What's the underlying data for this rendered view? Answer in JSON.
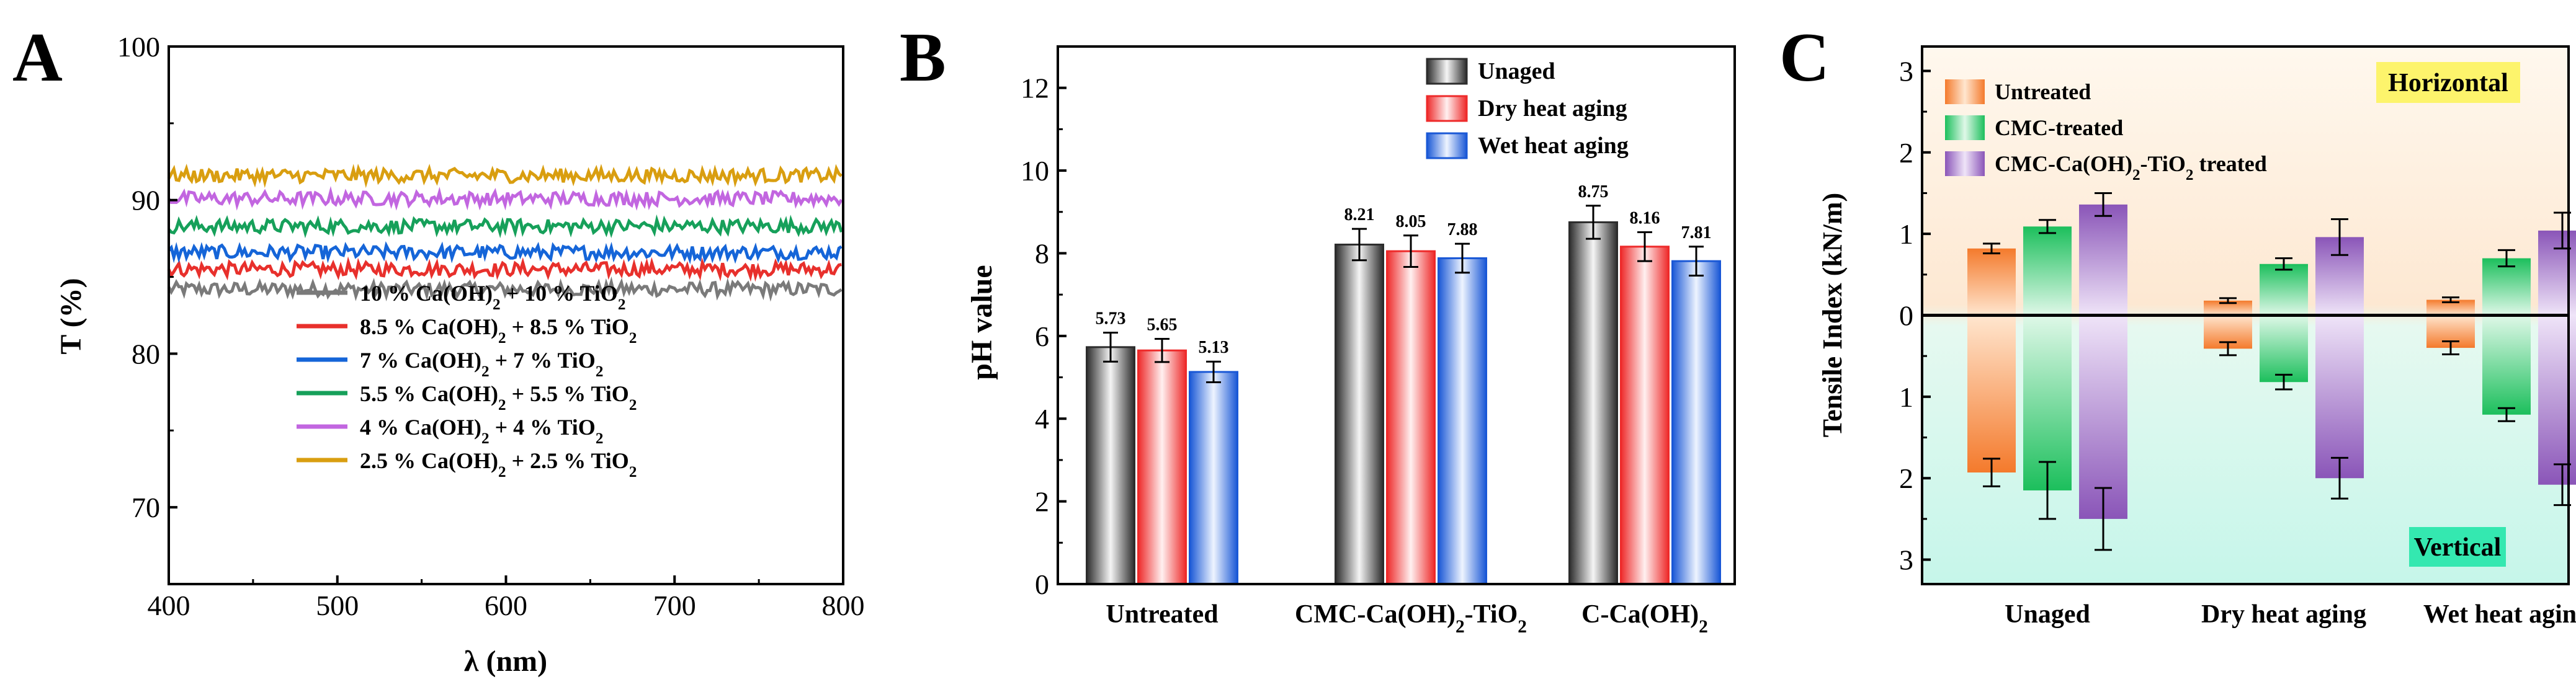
{
  "panels": {
    "A": {
      "letter": "A",
      "chart_data": {
        "type": "line",
        "title": "",
        "xlabel": "λ (nm)",
        "ylabel": "T (%)",
        "xlim": [
          400,
          800
        ],
        "ylim": [
          65,
          100
        ],
        "xticks": [
          400,
          500,
          600,
          700,
          800
        ],
        "yticks": [
          70,
          80,
          90,
          100
        ],
        "legend_position": "bottom-right",
        "series": [
          {
            "name": "10 % Ca(OH)2 + 10 % TiO2",
            "legend_parts": [
              "10 % Ca(OH)",
              "2",
              " + 10 % TiO",
              "2"
            ],
            "mean": 84.2,
            "color": "#7a7a7a"
          },
          {
            "name": "8.5 % Ca(OH)2 + 8.5 % TiO2",
            "legend_parts": [
              "8.5 % Ca(OH)",
              "2",
              " + 8.5 % TiO",
              "2"
            ],
            "mean": 85.5,
            "color": "#e8302c"
          },
          {
            "name": "7 % Ca(OH)2 + 7 % TiO2",
            "legend_parts": [
              "7 % Ca(OH)",
              "2",
              " + 7 % TiO",
              "2"
            ],
            "mean": 86.6,
            "color": "#1565d8"
          },
          {
            "name": "5.5 % Ca(OH)2 + 5.5 % TiO2",
            "legend_parts": [
              "5.5 % Ca(OH)",
              "2",
              " + 5.5 % TiO",
              "2"
            ],
            "mean": 88.3,
            "color": "#16a05a"
          },
          {
            "name": "4 % Ca(OH)2 + 4 % TiO2",
            "legend_parts": [
              "4 % Ca(OH)",
              "2",
              " + 4 % TiO",
              "2"
            ],
            "mean": 90.1,
            "color": "#c266e0"
          },
          {
            "name": "2.5 % Ca(OH)2 + 2.5 % TiO2",
            "legend_parts": [
              "2.5 % Ca(OH)",
              "2",
              " + 2.5 % TiO",
              "2"
            ],
            "mean": 91.6,
            "color": "#d99e10"
          }
        ]
      }
    },
    "B": {
      "letter": "B",
      "chart_data": {
        "type": "bar",
        "title": "",
        "xlabel": "",
        "ylabel": "pH value",
        "ylim": [
          0,
          13
        ],
        "yticks": [
          0,
          2,
          4,
          6,
          8,
          10,
          12
        ],
        "categories": [
          "Untreated",
          "CMC-Ca(OH)2-TiO2",
          "C-Ca(OH)2"
        ],
        "category_parts": [
          [
            "Untreated"
          ],
          [
            "CMC-Ca(OH)",
            "2",
            "-TiO",
            "2"
          ],
          [
            "C-Ca(OH)",
            "2"
          ]
        ],
        "legend_position": "top-right",
        "series": [
          {
            "name": "Unaged",
            "values": [
              5.73,
              8.21,
              8.75
            ],
            "errors": [
              0.35,
              0.38,
              0.4
            ],
            "color_dark": "#2c2c2c",
            "color_light": "#f5f5f5"
          },
          {
            "name": "Dry heat aging",
            "values": [
              5.65,
              8.05,
              8.16
            ],
            "errors": [
              0.28,
              0.38,
              0.35
            ],
            "color_dark": "#ee2a2a",
            "color_light": "#fff0f0"
          },
          {
            "name": "Wet heat aging",
            "values": [
              5.13,
              7.88,
              7.81
            ],
            "errors": [
              0.25,
              0.35,
              0.35
            ],
            "color_dark": "#1a58d6",
            "color_light": "#eef4ff"
          }
        ],
        "data_labels": [
          "5.73",
          "5.65",
          "5.13",
          "8.21",
          "8.05",
          "7.88",
          "8.75",
          "8.16",
          "7.81"
        ]
      }
    },
    "C": {
      "letter": "C",
      "chart_data": {
        "type": "bar",
        "title": "",
        "xlabel": "",
        "ylabel": "Tensile Index (kN/m)",
        "ylim": [
          -3.3,
          3.3
        ],
        "yticks": [
          -3,
          -2,
          -1,
          0,
          1,
          2,
          3
        ],
        "ytick_labels": [
          "3",
          "2",
          "1",
          "0",
          "1",
          "2",
          "3"
        ],
        "categories": [
          "Unaged",
          "Dry heat aging",
          "Wet heat aging"
        ],
        "legend_position": "top-left",
        "region_labels": {
          "top": "Horizontal",
          "bottom": "Vertical"
        },
        "series": [
          {
            "name": "Untreated",
            "legend_parts": [
              "Untreated"
            ],
            "horizontal": [
              0.82,
              0.18,
              0.19
            ],
            "horizontal_err": [
              0.06,
              0.03,
              0.03
            ],
            "vertical": [
              1.93,
              0.41,
              0.4
            ],
            "vertical_err": [
              0.17,
              0.08,
              0.08
            ],
            "color_dark": "#f47a2c",
            "color_light": "#ffe6cf"
          },
          {
            "name": "CMC-treated",
            "legend_parts": [
              "CMC-treated"
            ],
            "horizontal": [
              1.09,
              0.63,
              0.7
            ],
            "horizontal_err": [
              0.08,
              0.07,
              0.1
            ],
            "vertical": [
              2.15,
              0.82,
              1.22
            ],
            "vertical_err": [
              0.35,
              0.09,
              0.08
            ],
            "color_dark": "#1cbf5c",
            "color_light": "#dff8e8"
          },
          {
            "name": "CMC-Ca(OH)2-TiO2 treated",
            "legend_parts": [
              "CMC-Ca(OH)",
              "2",
              "-TiO",
              "2",
              " treated"
            ],
            "horizontal": [
              1.36,
              0.96,
              1.04
            ],
            "horizontal_err": [
              0.14,
              0.22,
              0.22
            ],
            "vertical": [
              2.5,
              2.0,
              2.08
            ],
            "vertical_err": [
              0.38,
              0.25,
              0.25
            ],
            "color_dark": "#8a55b8",
            "color_light": "#efe4f8"
          }
        ]
      }
    }
  },
  "colors": {
    "axis": "#000000",
    "c_top_bg": "#fdf0e1",
    "c_bottom_bg": "#d2f8ef",
    "horizontal_box": "#fdf46c",
    "vertical_box": "#34e8b0"
  }
}
